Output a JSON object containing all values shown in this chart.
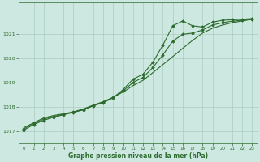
{
  "background_color": "#cce8e0",
  "grid_color": "#aaccc0",
  "line_color": "#2d6a2d",
  "marker_color": "#2d6a2d",
  "xlabel": "Graphe pression niveau de la mer (hPa)",
  "xlim": [
    -0.5,
    23.5
  ],
  "ylim": [
    1016.5,
    1022.3
  ],
  "yticks": [
    1017,
    1018,
    1019,
    1020,
    1021
  ],
  "xticks": [
    0,
    1,
    2,
    3,
    4,
    5,
    6,
    7,
    8,
    9,
    10,
    11,
    12,
    13,
    14,
    15,
    16,
    17,
    18,
    19,
    20,
    21,
    22,
    23
  ],
  "series1_x": [
    0,
    1,
    2,
    3,
    4,
    5,
    6,
    7,
    8,
    9,
    10,
    11,
    12,
    13,
    14,
    15,
    16,
    17,
    18,
    19,
    20,
    21,
    22,
    23
  ],
  "series1_y": [
    1017.15,
    1017.35,
    1017.55,
    1017.65,
    1017.72,
    1017.8,
    1017.92,
    1018.08,
    1018.22,
    1018.4,
    1018.62,
    1018.88,
    1019.1,
    1019.42,
    1019.75,
    1020.08,
    1020.42,
    1020.75,
    1021.05,
    1021.25,
    1021.38,
    1021.48,
    1021.55,
    1021.62
  ],
  "series2_x": [
    0,
    1,
    2,
    3,
    4,
    5,
    6,
    7,
    8,
    9,
    10,
    11,
    12,
    13,
    14,
    15,
    16,
    17,
    18,
    19,
    20,
    21,
    22,
    23
  ],
  "series2_y": [
    1017.05,
    1017.28,
    1017.45,
    1017.58,
    1017.68,
    1017.78,
    1017.88,
    1018.05,
    1018.18,
    1018.38,
    1018.72,
    1019.15,
    1019.35,
    1019.85,
    1020.55,
    1021.35,
    1021.55,
    1021.35,
    1021.3,
    1021.5,
    1021.58,
    1021.6,
    1021.62,
    1021.65
  ],
  "series3_x": [
    0,
    1,
    2,
    3,
    4,
    5,
    6,
    7,
    8,
    9,
    10,
    11,
    12,
    13,
    14,
    15,
    16,
    17,
    18,
    19,
    20,
    21,
    22,
    23
  ],
  "series3_y": [
    1017.1,
    1017.32,
    1017.5,
    1017.61,
    1017.7,
    1017.79,
    1017.9,
    1018.06,
    1018.2,
    1018.39,
    1018.67,
    1019.01,
    1019.22,
    1019.63,
    1020.15,
    1020.72,
    1021.0,
    1021.05,
    1021.18,
    1021.38,
    1021.48,
    1021.54,
    1021.58,
    1021.63
  ]
}
